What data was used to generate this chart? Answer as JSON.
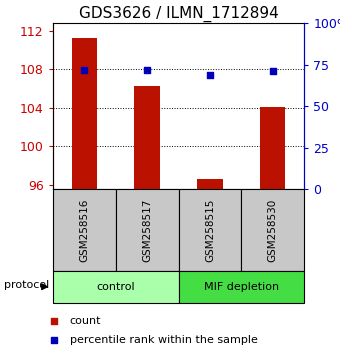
{
  "title": "GDS3626 / ILMN_1712894",
  "samples": [
    "GSM258516",
    "GSM258517",
    "GSM258515",
    "GSM258530"
  ],
  "counts": [
    111.2,
    106.2,
    96.6,
    104.1
  ],
  "percentile_ranks": [
    71.5,
    72.0,
    68.5,
    71.0
  ],
  "left_ylim": [
    95.5,
    112.8
  ],
  "left_yticks": [
    96,
    100,
    104,
    108,
    112
  ],
  "right_yticks": [
    0,
    25,
    50,
    75,
    100
  ],
  "right_yticklabels": [
    "0",
    "25",
    "50",
    "75",
    "100%"
  ],
  "bar_color": "#bb1100",
  "dot_color": "#0000bb",
  "bar_width": 0.4,
  "group_boundaries": [
    [
      0,
      2,
      "control",
      "#aaffaa"
    ],
    [
      2,
      4,
      "MIF depletion",
      "#44dd44"
    ]
  ],
  "grid_values": [
    100,
    104,
    108
  ],
  "sample_box_color": "#c8c8c8",
  "protocol_label": "protocol",
  "left_yaxis_color": "#cc0000",
  "right_yaxis_color": "#0000cc",
  "title_fontsize": 11,
  "tick_fontsize": 9,
  "sample_fontsize": 7.5,
  "group_fontsize": 8,
  "legend_fontsize": 8
}
